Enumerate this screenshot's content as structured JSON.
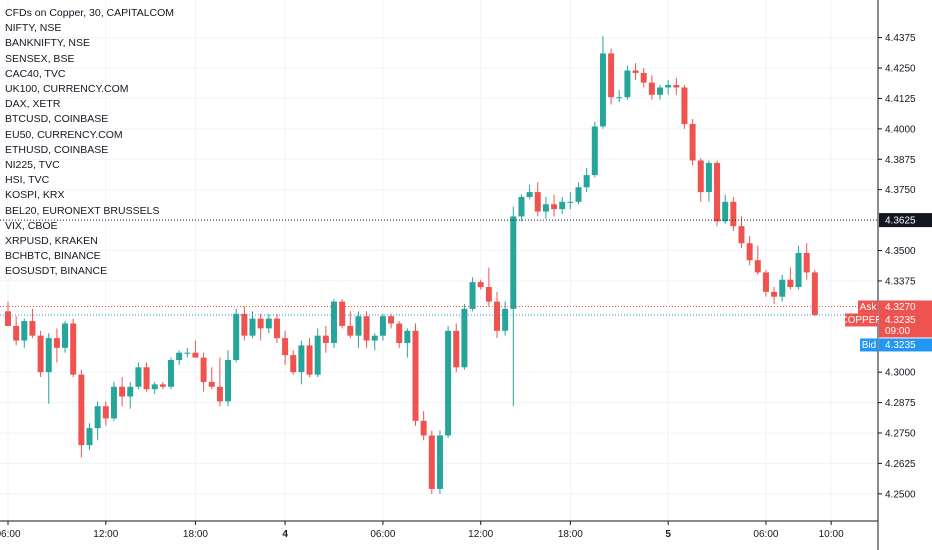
{
  "chart_data": {
    "type": "candlestick",
    "title": "CFDs on Copper, 30, CAPITALCOM",
    "comparison_symbols": [
      "NIFTY, NSE",
      "BANKNIFTY, NSE",
      "SENSEX, BSE",
      "CAC40, TVC",
      "UK100, CURRENCY.COM",
      "DAX, XETR",
      "BTCUSD, COINBASE",
      "EU50, CURRENCY.COM",
      "ETHUSD, COINBASE",
      "NI225, TVC",
      "HSI, TVC",
      "KOSPI, KRX",
      "BEL20, EURONEXT BRUSSELS",
      "VIX, CBOE",
      "XRPUSD, KRAKEN",
      "BCHBTC, BINANCE",
      "EOSUSDT, BINANCE"
    ],
    "ylim": [
      4.245,
      4.4435
    ],
    "y_ticks": [
      "4.4375",
      "4.4250",
      "4.4125",
      "4.4000",
      "4.3875",
      "4.3750",
      "4.3500",
      "4.3375",
      "4.3000",
      "4.2875",
      "4.2750",
      "4.2625",
      "4.2500"
    ],
    "x_ticks": [
      {
        "label": "06:00",
        "index": 0
      },
      {
        "label": "12:00",
        "index": 12
      },
      {
        "label": "18:00",
        "index": 23
      },
      {
        "label": "4",
        "index": 34
      },
      {
        "label": "06:00",
        "index": 46
      },
      {
        "label": "12:00",
        "index": 58
      },
      {
        "label": "18:00",
        "index": 69
      },
      {
        "label": "5",
        "index": 81
      },
      {
        "label": "06:00",
        "index": 93
      },
      {
        "label": "10:00",
        "index": 101
      }
    ],
    "candles": [
      [
        4.325,
        4.329,
        4.319,
        4.319
      ],
      [
        4.319,
        4.323,
        4.311,
        4.313
      ],
      [
        4.313,
        4.322,
        4.31,
        4.321
      ],
      [
        4.321,
        4.326,
        4.314,
        4.315
      ],
      [
        4.315,
        4.317,
        4.298,
        4.3
      ],
      [
        4.3,
        4.316,
        4.287,
        4.314
      ],
      [
        4.314,
        4.318,
        4.304,
        4.31
      ],
      [
        4.31,
        4.321,
        4.308,
        4.32
      ],
      [
        4.32,
        4.322,
        4.298,
        4.299
      ],
      [
        4.299,
        4.301,
        4.265,
        4.27
      ],
      [
        4.27,
        4.279,
        4.268,
        4.277
      ],
      [
        4.277,
        4.288,
        4.272,
        4.286
      ],
      [
        4.286,
        4.288,
        4.278,
        4.281
      ],
      [
        4.281,
        4.296,
        4.28,
        4.294
      ],
      [
        4.294,
        4.298,
        4.286,
        4.29
      ],
      [
        4.29,
        4.296,
        4.285,
        4.294
      ],
      [
        4.294,
        4.304,
        4.293,
        4.302
      ],
      [
        4.302,
        4.304,
        4.292,
        4.293
      ],
      [
        4.293,
        4.296,
        4.291,
        4.295
      ],
      [
        4.295,
        4.296,
        4.293,
        4.294
      ],
      [
        4.294,
        4.306,
        4.293,
        4.305
      ],
      [
        4.305,
        4.309,
        4.303,
        4.308
      ],
      [
        4.308,
        4.31,
        4.306,
        4.308
      ],
      [
        4.308,
        4.313,
        4.306,
        4.306
      ],
      [
        4.306,
        4.308,
        4.292,
        4.296
      ],
      [
        4.296,
        4.302,
        4.293,
        4.294
      ],
      [
        4.294,
        4.306,
        4.286,
        4.288
      ],
      [
        4.288,
        4.309,
        4.286,
        4.305
      ],
      [
        4.305,
        4.326,
        4.304,
        4.324
      ],
      [
        4.324,
        4.327,
        4.313,
        4.315
      ],
      [
        4.315,
        4.325,
        4.314,
        4.322
      ],
      [
        4.322,
        4.324,
        4.313,
        4.318
      ],
      [
        4.318,
        4.324,
        4.316,
        4.322
      ],
      [
        4.322,
        4.324,
        4.312,
        4.314
      ],
      [
        4.314,
        4.317,
        4.303,
        4.307
      ],
      [
        4.307,
        4.309,
        4.299,
        4.3
      ],
      [
        4.3,
        4.313,
        4.295,
        4.311
      ],
      [
        4.311,
        4.314,
        4.298,
        4.299
      ],
      [
        4.299,
        4.318,
        4.298,
        4.315
      ],
      [
        4.315,
        4.319,
        4.308,
        4.312
      ],
      [
        4.312,
        4.33,
        4.31,
        4.329
      ],
      [
        4.329,
        4.33,
        4.318,
        4.319
      ],
      [
        4.319,
        4.325,
        4.314,
        4.315
      ],
      [
        4.315,
        4.325,
        4.31,
        4.323
      ],
      [
        4.323,
        4.325,
        4.31,
        4.313
      ],
      [
        4.313,
        4.316,
        4.309,
        4.315
      ],
      [
        4.315,
        4.324,
        4.313,
        4.323
      ],
      [
        4.323,
        4.324,
        4.318,
        4.32
      ],
      [
        4.32,
        4.321,
        4.31,
        4.312
      ],
      [
        4.312,
        4.318,
        4.306,
        4.317
      ],
      [
        4.317,
        4.32,
        4.278,
        4.28
      ],
      [
        4.28,
        4.284,
        4.272,
        4.274
      ],
      [
        4.274,
        4.276,
        4.25,
        4.252
      ],
      [
        4.252,
        4.276,
        4.25,
        4.274
      ],
      [
        4.274,
        4.319,
        4.273,
        4.317
      ],
      [
        4.317,
        4.32,
        4.3,
        4.302
      ],
      [
        4.302,
        4.328,
        4.301,
        4.326
      ],
      [
        4.326,
        4.339,
        4.325,
        4.337
      ],
      [
        4.337,
        4.338,
        4.334,
        4.335
      ],
      [
        4.335,
        4.343,
        4.327,
        4.329
      ],
      [
        4.329,
        4.333,
        4.314,
        4.317
      ],
      [
        4.317,
        4.329,
        4.315,
        4.326
      ],
      [
        4.326,
        4.368,
        4.286,
        4.364
      ],
      [
        4.364,
        4.373,
        4.362,
        4.372
      ],
      [
        4.372,
        4.377,
        4.371,
        4.374
      ],
      [
        4.374,
        4.378,
        4.364,
        4.366
      ],
      [
        4.366,
        4.372,
        4.363,
        4.369
      ],
      [
        4.369,
        4.373,
        4.364,
        4.367
      ],
      [
        4.367,
        4.372,
        4.365,
        4.37
      ],
      [
        4.37,
        4.374,
        4.367,
        4.37
      ],
      [
        4.37,
        4.378,
        4.369,
        4.376
      ],
      [
        4.376,
        4.384,
        4.374,
        4.381
      ],
      [
        4.381,
        4.403,
        4.38,
        4.401
      ],
      [
        4.401,
        4.438,
        4.4,
        4.431
      ],
      [
        4.431,
        4.433,
        4.41,
        4.413
      ],
      [
        4.413,
        4.416,
        4.411,
        4.413
      ],
      [
        4.413,
        4.426,
        4.412,
        4.424
      ],
      [
        4.424,
        4.427,
        4.42,
        4.423
      ],
      [
        4.423,
        4.425,
        4.417,
        4.419
      ],
      [
        4.419,
        4.422,
        4.412,
        4.414
      ],
      [
        4.414,
        4.418,
        4.412,
        4.417
      ],
      [
        4.417,
        4.42,
        4.414,
        4.418
      ],
      [
        4.418,
        4.421,
        4.414,
        4.417
      ],
      [
        4.417,
        4.418,
        4.4,
        4.402
      ],
      [
        4.402,
        4.404,
        4.385,
        4.387
      ],
      [
        4.387,
        4.388,
        4.37,
        4.374
      ],
      [
        4.374,
        4.387,
        4.37,
        4.386
      ],
      [
        4.386,
        4.387,
        4.36,
        4.362
      ],
      [
        4.362,
        4.373,
        4.361,
        4.37
      ],
      [
        4.37,
        4.372,
        4.358,
        4.36
      ],
      [
        4.36,
        4.364,
        4.351,
        4.353
      ],
      [
        4.353,
        4.356,
        4.344,
        4.346
      ],
      [
        4.346,
        4.352,
        4.34,
        4.341
      ],
      [
        4.341,
        4.342,
        4.331,
        4.333
      ],
      [
        4.333,
        4.335,
        4.328,
        4.331
      ],
      [
        4.331,
        4.34,
        4.329,
        4.338
      ],
      [
        4.338,
        4.343,
        4.334,
        4.335
      ],
      [
        4.335,
        4.352,
        4.334,
        4.349
      ],
      [
        4.349,
        4.353,
        4.338,
        4.341
      ],
      [
        4.341,
        4.342,
        4.323,
        4.3235
      ]
    ],
    "price_lines": {
      "ask": {
        "label": "Ask",
        "value": "4.3270",
        "price": 4.327,
        "color": "#ef5350"
      },
      "last": {
        "label": "COPPER",
        "value": "4.3235",
        "price": 4.3235,
        "countdown": "09:00",
        "color": "#ef5350"
      },
      "bid": {
        "label": "Bid",
        "value": "4.3235",
        "price": 4.3235,
        "color": "#2196f3"
      },
      "comparison": {
        "value": "4.3625",
        "price": 4.3625,
        "color": "#131722"
      }
    },
    "colors": {
      "up": "#26a69a",
      "down": "#ef5350",
      "grid": "#f0f3fa",
      "axis": "#131722"
    },
    "grid": true,
    "legend_placement": "top-left"
  }
}
